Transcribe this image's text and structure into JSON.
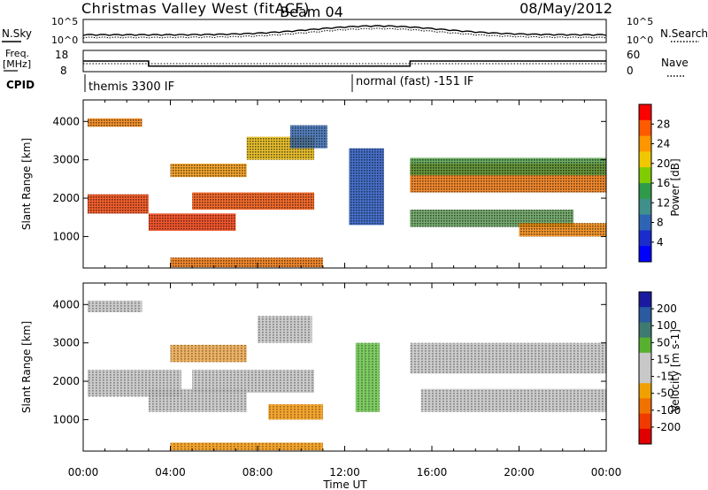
{
  "header": {
    "title": "Christmas Valley West (fitACF)",
    "beam": "Beam 04",
    "date": "08/May/2012"
  },
  "top_panels": {
    "nsky_label": "N.Sky",
    "nsearch_label": "N.Search",
    "noise_ticks_left": [
      "10^5",
      "10^0"
    ],
    "noise_ticks_right": [
      "10^5",
      "10^0"
    ],
    "freq_label": [
      "Freq.",
      "[MHz]"
    ],
    "nave_label": "Nave",
    "freq_ticks": [
      "18",
      "8"
    ],
    "nave_ticks": [
      "60",
      "0"
    ],
    "cpid_label": "CPID",
    "cpid_segments": [
      {
        "start_hour": 0.0,
        "end_hour": 12.1,
        "label": "themis 3300 IF"
      },
      {
        "start_hour": 12.1,
        "end_hour": 24.0,
        "label": "normal (fast) -151 IF"
      }
    ],
    "freq_mhz_steps": [
      {
        "start_hour": 0.0,
        "end_hour": 3.0,
        "value": 13.0
      },
      {
        "start_hour": 3.0,
        "end_hour": 12.1,
        "value": 10.6
      },
      {
        "start_hour": 12.1,
        "end_hour": 15.0,
        "value": 10.6
      },
      {
        "start_hour": 15.0,
        "end_hour": 24.0,
        "value": 13.0
      }
    ]
  },
  "chart_data": [
    {
      "type": "heatmap",
      "name": "power",
      "ylabel": "Slant Range [km]",
      "xlim": [
        0,
        24
      ],
      "ylim": [
        180,
        4560
      ],
      "yticks": [
        1000,
        2000,
        3000,
        4000
      ],
      "colorbar": {
        "label": "Power [dB]",
        "ticks": [
          "28",
          "24",
          "20",
          "16",
          "12",
          "8",
          "4"
        ],
        "colors": [
          "#ff0000",
          "#ff5a00",
          "#ff9600",
          "#f0c800",
          "#7fcc00",
          "#2f9a4a",
          "#3f8f8a",
          "#2f64b4",
          "#1a2ccc",
          "#0000ff"
        ]
      },
      "bands": [
        {
          "start": 0.2,
          "end": 2.7,
          "range": [
            3860,
            4080
          ],
          "color": "#f07a00"
        },
        {
          "start": 0.2,
          "end": 3.0,
          "range": [
            1600,
            2100
          ],
          "color": "#f03c00"
        },
        {
          "start": 3.0,
          "end": 7.0,
          "range": [
            1150,
            1600
          ],
          "color": "#f03200"
        },
        {
          "start": 5.0,
          "end": 10.6,
          "range": [
            1700,
            2150
          ],
          "color": "#f04a00"
        },
        {
          "start": 4.0,
          "end": 7.5,
          "range": [
            2550,
            2900
          ],
          "color": "#f09000"
        },
        {
          "start": 7.5,
          "end": 10.6,
          "range": [
            3000,
            3600
          ],
          "color": "#e0b000"
        },
        {
          "start": 9.5,
          "end": 11.2,
          "range": [
            3300,
            3900
          ],
          "color": "#3064b0"
        },
        {
          "start": 12.2,
          "end": 13.8,
          "range": [
            1300,
            3300
          ],
          "color": "#2050c0"
        },
        {
          "start": 15.0,
          "end": 24.0,
          "range": [
            2150,
            2900
          ],
          "color": "#f07000"
        },
        {
          "start": 15.0,
          "end": 24.0,
          "range": [
            2600,
            3050
          ],
          "color": "#4a9a40"
        },
        {
          "start": 15.0,
          "end": 22.5,
          "range": [
            1250,
            1700
          ],
          "color": "#5a9a50"
        },
        {
          "start": 20.0,
          "end": 24.0,
          "range": [
            1000,
            1350
          ],
          "color": "#f08000"
        },
        {
          "start": 4.0,
          "end": 11.0,
          "range": [
            200,
            450
          ],
          "color": "#f07000"
        }
      ]
    },
    {
      "type": "heatmap",
      "name": "velocity",
      "ylabel": "Slant Range [km]",
      "xlabel": "Time UT",
      "xlim": [
        0,
        24
      ],
      "ylim": [
        180,
        4560
      ],
      "yticks": [
        1000,
        2000,
        3000,
        4000
      ],
      "xticks": [
        "00:00",
        "04:00",
        "08:00",
        "12:00",
        "16:00",
        "20:00",
        "00:00"
      ],
      "colorbar": {
        "label": "Velocity [m s-1]",
        "ticks": [
          "200",
          "100",
          "50",
          "15",
          "-15",
          "-50",
          "-100",
          "-200"
        ],
        "colors": [
          "#1a1aa0",
          "#2a5aa0",
          "#3f7a70",
          "#58b030",
          "#c8c8c8",
          "#c8c8c8",
          "#f0a000",
          "#f07000",
          "#f03a00",
          "#e00000"
        ]
      },
      "bands": [
        {
          "start": 0.2,
          "end": 2.7,
          "range": [
            3800,
            4100
          ],
          "color": "#c0c0c0"
        },
        {
          "start": 0.2,
          "end": 4.5,
          "range": [
            1600,
            2300
          ],
          "color": "#c0c0c0"
        },
        {
          "start": 3.0,
          "end": 7.5,
          "range": [
            1200,
            1800
          ],
          "color": "#c0c0c0"
        },
        {
          "start": 5.0,
          "end": 10.6,
          "range": [
            1700,
            2300
          ],
          "color": "#c0c0c0"
        },
        {
          "start": 4.0,
          "end": 7.5,
          "range": [
            2500,
            2950
          ],
          "color": "#e8a040"
        },
        {
          "start": 8.0,
          "end": 10.5,
          "range": [
            3000,
            3700
          ],
          "color": "#c0c0c0"
        },
        {
          "start": 8.5,
          "end": 11.0,
          "range": [
            1000,
            1400
          ],
          "color": "#f09000"
        },
        {
          "start": 12.5,
          "end": 13.6,
          "range": [
            1200,
            3000
          ],
          "color": "#60c040"
        },
        {
          "start": 15.0,
          "end": 24.0,
          "range": [
            2200,
            3000
          ],
          "color": "#c0c0c0"
        },
        {
          "start": 15.5,
          "end": 24.0,
          "range": [
            1200,
            1800
          ],
          "color": "#c0c0c0"
        },
        {
          "start": 4.0,
          "end": 11.0,
          "range": [
            200,
            400
          ],
          "color": "#f09000"
        }
      ]
    }
  ]
}
